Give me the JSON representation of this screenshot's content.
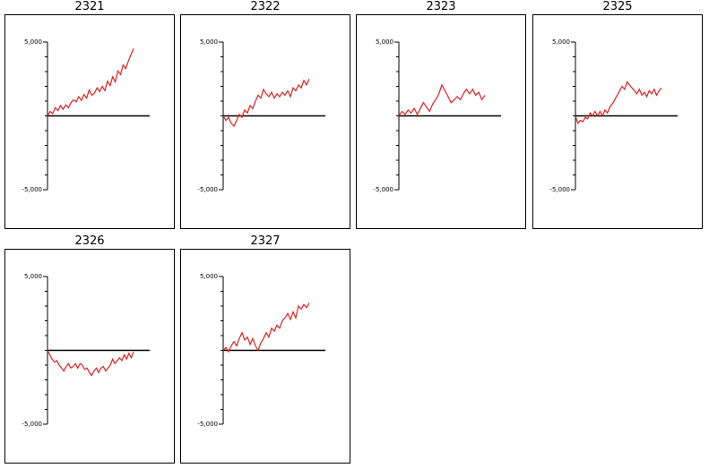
{
  "chart_data": [
    {
      "type": "line",
      "title": "2321",
      "ylim": [
        -5000,
        5000
      ],
      "yticks": {
        "top": "5,000",
        "bottom": "-5,000"
      },
      "zero_line": true,
      "color": "#e02020",
      "values": [
        0,
        300,
        150,
        550,
        350,
        700,
        450,
        750,
        550,
        900,
        1100,
        950,
        1300,
        1050,
        1450,
        1200,
        1750,
        1400,
        1550,
        1900,
        1650,
        2000,
        1700,
        2350,
        2050,
        2650,
        2300,
        3050,
        2800,
        3450,
        3200,
        3700,
        4150,
        4550
      ]
    },
    {
      "type": "line",
      "title": "2322",
      "ylim": [
        -5000,
        5000
      ],
      "yticks": {
        "top": "5,000",
        "bottom": "-5,000"
      },
      "zero_line": true,
      "color": "#e02020",
      "values": [
        0,
        -300,
        -100,
        -500,
        -700,
        -300,
        100,
        -100,
        400,
        200,
        700,
        500,
        1000,
        1400,
        1200,
        1800,
        1500,
        1300,
        1600,
        1200,
        1500,
        1300,
        1600,
        1400,
        1700,
        1300,
        1900,
        1700,
        2100,
        1900,
        2400,
        2100,
        2500
      ]
    },
    {
      "type": "line",
      "title": "2323",
      "ylim": [
        -5000,
        5000
      ],
      "yticks": {
        "top": "5,000",
        "bottom": "-5,000"
      },
      "zero_line": true,
      "color": "#e02020",
      "values": [
        0,
        300,
        100,
        400,
        200,
        500,
        100,
        500,
        900,
        600,
        300,
        800,
        1100,
        1500,
        2100,
        1700,
        1300,
        900,
        1100,
        1300,
        1100,
        1500,
        1800,
        1500,
        1800,
        1400,
        1600,
        1100,
        1400
      ]
    },
    {
      "type": "line",
      "title": "2325",
      "ylim": [
        -5000,
        5000
      ],
      "yticks": {
        "top": "5,000",
        "bottom": "-5,000"
      },
      "zero_line": true,
      "color": "#e02020",
      "values": [
        0,
        -500,
        -300,
        -400,
        -100,
        -200,
        200,
        0,
        300,
        0,
        300,
        0,
        400,
        200,
        600,
        800,
        1100,
        1400,
        1700,
        2000,
        1800,
        2300,
        2100,
        1900,
        1700,
        1500,
        1800,
        1400,
        1600,
        1300,
        1700,
        1500,
        1800,
        1400,
        1700,
        1900
      ]
    },
    {
      "type": "line",
      "title": "2326",
      "ylim": [
        -5000,
        5000
      ],
      "yticks": {
        "top": "5,000",
        "bottom": "-5,000"
      },
      "zero_line": true,
      "color": "#e02020",
      "values": [
        0,
        -300,
        -600,
        -800,
        -700,
        -1000,
        -1200,
        -1400,
        -1100,
        -900,
        -1200,
        -1100,
        -900,
        -1200,
        -900,
        -1000,
        -1300,
        -1200,
        -1500,
        -1700,
        -1400,
        -1200,
        -1500,
        -1200,
        -1100,
        -1400,
        -1200,
        -1000,
        -600,
        -900,
        -700,
        -500,
        -700,
        -300,
        -600,
        -200,
        -500,
        -100
      ]
    },
    {
      "type": "line",
      "title": "2327",
      "ylim": [
        -5000,
        5000
      ],
      "yticks": {
        "top": "5,000",
        "bottom": "-5,000"
      },
      "zero_line": true,
      "color": "#e02020",
      "values": [
        0,
        200,
        -100,
        300,
        600,
        300,
        800,
        1200,
        700,
        900,
        400,
        800,
        300,
        0,
        500,
        800,
        1200,
        900,
        1500,
        1300,
        1700,
        1500,
        2000,
        2200,
        2500,
        2100,
        2600,
        2200,
        3000,
        2800,
        3100,
        2900,
        3200
      ]
    }
  ]
}
